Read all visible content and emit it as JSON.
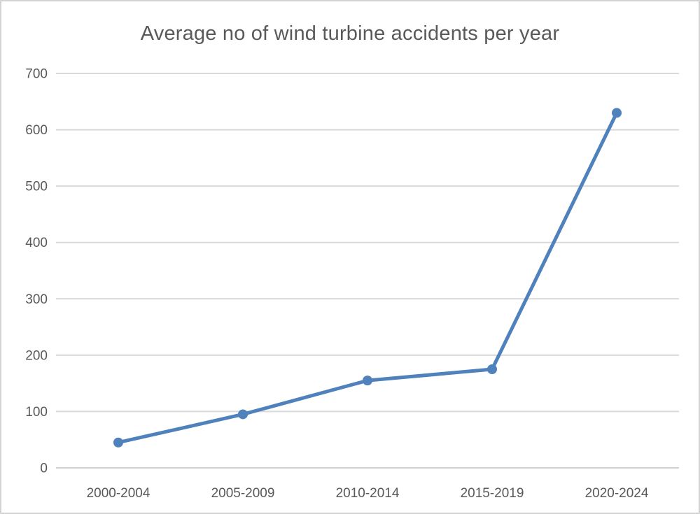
{
  "chart_data": {
    "type": "line",
    "title": "Average no of wind turbine accidents per year",
    "categories": [
      "2000-2004",
      "2005-2009",
      "2010-2014",
      "2015-2019",
      "2020-2024"
    ],
    "values": [
      45,
      95,
      155,
      175,
      630
    ],
    "series_name": "Average no of wind turbine accidents per year",
    "xlabel": "",
    "ylabel": "",
    "ylim": [
      0,
      700
    ],
    "yticks": [
      0,
      100,
      200,
      300,
      400,
      500,
      600,
      700
    ],
    "grid": true,
    "legend": false,
    "colors": {
      "line": "#4f81bd",
      "marker": "#4f81bd",
      "gridline": "#d9d9d9",
      "axis_line": "#cfcfcf",
      "text": "#595959",
      "background": "#ffffff",
      "frame_border": "#d3d3d3"
    }
  }
}
